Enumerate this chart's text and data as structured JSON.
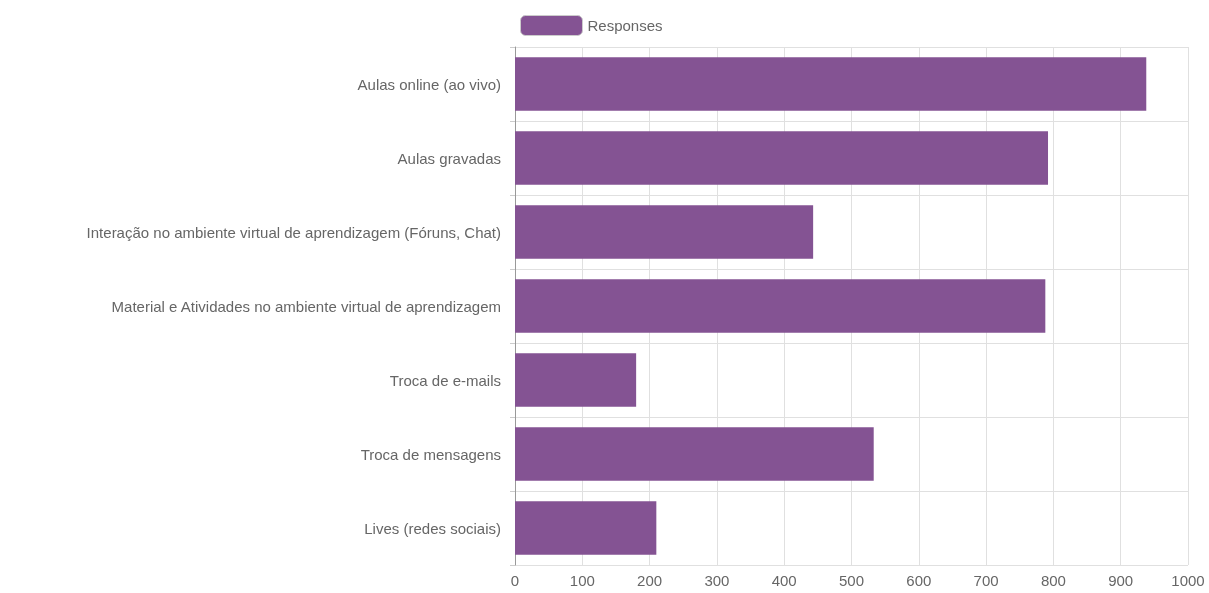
{
  "chart_data": {
    "type": "bar",
    "orientation": "horizontal",
    "categories": [
      "Aulas online (ao vivo)",
      "Aulas gravadas",
      "Interação no ambiente virtual de aprendizagem (Fóruns, Chat)",
      "Material e Atividades no ambiente virtual de aprendizagem",
      "Troca de e-mails",
      "Troca de mensagens",
      "Lives (redes sociais)"
    ],
    "series": [
      {
        "name": "Responses",
        "color": "#845393",
        "values": [
          938,
          792,
          443,
          788,
          180,
          533,
          210
        ]
      }
    ],
    "xlim": [
      0,
      1000
    ],
    "xticks": [
      0,
      100,
      200,
      300,
      400,
      500,
      600,
      700,
      800,
      900,
      1000
    ],
    "grid": true,
    "legend": "top"
  }
}
